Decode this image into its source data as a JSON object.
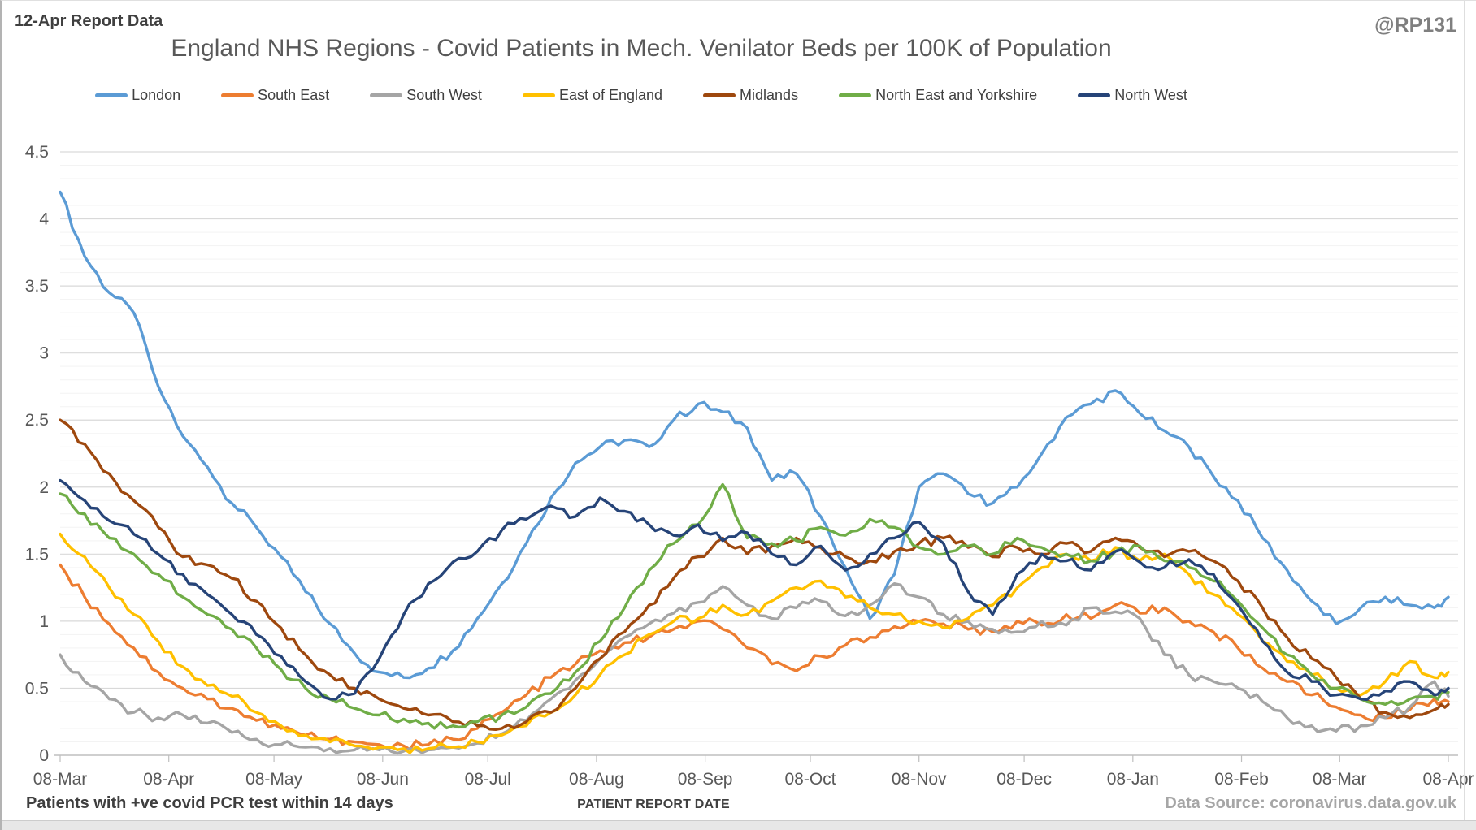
{
  "page": {
    "report_label": "12-Apr Report Data",
    "watermark": "@RP131",
    "footer_left": "Patients with +ve covid PCR test within 14 days",
    "footer_right": "Data Source: coronavirus.data.gov.uk"
  },
  "chart_data": {
    "type": "line",
    "title": "England NHS Regions - Covid Patients in Mech. Venilator Beds per 100K of Population",
    "xlabel": "PATIENT REPORT DATE",
    "ylabel": "",
    "ylim": [
      0,
      4.5
    ],
    "y_ticks": [
      0,
      0.5,
      1,
      1.5,
      2,
      2.5,
      3,
      3.5,
      4,
      4.5
    ],
    "grid": {
      "horizontal_major_step": 0.5,
      "horizontal_minor_step": 0.1,
      "vertical": false
    },
    "legend_position": "top",
    "x_tick_labels": [
      "08-Mar",
      "08-Apr",
      "08-May",
      "08-Jun",
      "08-Jul",
      "08-Aug",
      "08-Sep",
      "08-Oct",
      "08-Nov",
      "08-Dec",
      "08-Jan",
      "08-Feb",
      "08-Mar",
      "08-Apr"
    ],
    "x_tick_day_offsets": [
      0,
      31,
      61,
      92,
      122,
      153,
      184,
      214,
      245,
      275,
      306,
      337,
      365,
      396
    ],
    "x_sample_dates": [
      "2020-03-08",
      "2020-03-15",
      "2020-03-22",
      "2020-03-29",
      "2020-04-05",
      "2020-04-12",
      "2020-04-19",
      "2020-04-26",
      "2020-05-03",
      "2020-05-10",
      "2020-05-17",
      "2020-05-24",
      "2020-05-31",
      "2020-06-07",
      "2020-06-14",
      "2020-06-21",
      "2020-06-28",
      "2020-07-05",
      "2020-07-12",
      "2020-07-19",
      "2020-07-26",
      "2020-08-02",
      "2020-08-09",
      "2020-08-16",
      "2020-08-23",
      "2020-08-30",
      "2020-09-06",
      "2020-09-13",
      "2020-09-20",
      "2020-09-27",
      "2020-10-04",
      "2020-10-11",
      "2020-10-18",
      "2020-10-25",
      "2020-11-01",
      "2020-11-08",
      "2020-11-15",
      "2020-11-22",
      "2020-11-29",
      "2020-12-06",
      "2020-12-13",
      "2020-12-20",
      "2020-12-27",
      "2021-01-03",
      "2021-01-10",
      "2021-01-17",
      "2021-01-24",
      "2021-01-31",
      "2021-02-07",
      "2021-02-14",
      "2021-02-21",
      "2021-02-28",
      "2021-03-07",
      "2021-03-14",
      "2021-03-21",
      "2021-03-28",
      "2021-04-04",
      "2021-04-08"
    ],
    "x_sample_day_offsets": [
      0,
      7,
      14,
      21,
      28,
      35,
      42,
      49,
      56,
      63,
      70,
      77,
      84,
      91,
      98,
      105,
      112,
      119,
      126,
      133,
      140,
      147,
      154,
      161,
      168,
      175,
      182,
      189,
      196,
      203,
      210,
      217,
      224,
      231,
      238,
      245,
      252,
      259,
      266,
      273,
      280,
      287,
      294,
      301,
      308,
      315,
      322,
      329,
      336,
      343,
      350,
      357,
      364,
      371,
      378,
      385,
      392,
      396
    ],
    "series": [
      {
        "name": "London",
        "color": "#5B9BD5",
        "values": [
          4.2,
          3.72,
          3.45,
          3.3,
          2.75,
          2.38,
          2.15,
          1.88,
          1.7,
          1.48,
          1.22,
          0.98,
          0.76,
          0.62,
          0.58,
          0.65,
          0.78,
          1.02,
          1.28,
          1.58,
          1.92,
          2.18,
          2.3,
          2.35,
          2.3,
          2.5,
          2.62,
          2.56,
          2.44,
          2.05,
          2.1,
          1.78,
          1.4,
          1.02,
          1.35,
          2.0,
          2.1,
          1.95,
          1.88,
          2.0,
          2.25,
          2.52,
          2.62,
          2.72,
          2.55,
          2.42,
          2.3,
          2.08,
          1.9,
          1.62,
          1.38,
          1.15,
          0.98,
          1.1,
          1.18,
          1.12,
          1.1,
          1.18
        ]
      },
      {
        "name": "South East",
        "color": "#ED7D31",
        "values": [
          1.42,
          1.18,
          0.98,
          0.8,
          0.62,
          0.5,
          0.42,
          0.35,
          0.26,
          0.2,
          0.15,
          0.12,
          0.1,
          0.08,
          0.07,
          0.08,
          0.12,
          0.2,
          0.32,
          0.45,
          0.58,
          0.68,
          0.78,
          0.84,
          0.88,
          0.94,
          1.0,
          0.94,
          0.8,
          0.68,
          0.63,
          0.74,
          0.82,
          0.88,
          0.96,
          1.0,
          0.98,
          0.94,
          0.92,
          1.0,
          0.97,
          1.05,
          1.02,
          1.12,
          1.06,
          1.1,
          1.0,
          0.92,
          0.8,
          0.65,
          0.55,
          0.45,
          0.36,
          0.3,
          0.28,
          0.34,
          0.42,
          0.4
        ]
      },
      {
        "name": "South West",
        "color": "#A5A5A5",
        "values": [
          0.75,
          0.55,
          0.42,
          0.32,
          0.28,
          0.3,
          0.24,
          0.17,
          0.12,
          0.08,
          0.06,
          0.05,
          0.04,
          0.04,
          0.03,
          0.04,
          0.06,
          0.09,
          0.16,
          0.26,
          0.42,
          0.56,
          0.72,
          0.88,
          0.98,
          1.06,
          1.14,
          1.26,
          1.12,
          1.02,
          1.1,
          1.15,
          1.04,
          1.12,
          1.28,
          1.18,
          1.05,
          1.0,
          0.94,
          0.92,
          1.0,
          0.97,
          1.1,
          1.07,
          1.02,
          0.75,
          0.6,
          0.55,
          0.5,
          0.4,
          0.28,
          0.22,
          0.18,
          0.22,
          0.28,
          0.36,
          0.55,
          0.44
        ]
      },
      {
        "name": "East of England",
        "color": "#FFC000",
        "values": [
          1.65,
          1.48,
          1.25,
          1.05,
          0.85,
          0.66,
          0.52,
          0.44,
          0.32,
          0.22,
          0.15,
          0.1,
          0.07,
          0.06,
          0.05,
          0.05,
          0.06,
          0.1,
          0.15,
          0.22,
          0.32,
          0.45,
          0.6,
          0.75,
          0.9,
          1.0,
          1.02,
          1.12,
          1.05,
          1.15,
          1.25,
          1.3,
          1.18,
          1.1,
          1.05,
          1.0,
          0.95,
          1.02,
          1.12,
          1.25,
          1.4,
          1.5,
          1.45,
          1.55,
          1.45,
          1.5,
          1.35,
          1.2,
          1.05,
          0.85,
          0.7,
          0.6,
          0.5,
          0.45,
          0.55,
          0.7,
          0.58,
          0.62
        ]
      },
      {
        "name": "Midlands",
        "color": "#9E480E",
        "values": [
          2.5,
          2.32,
          2.1,
          1.9,
          1.7,
          1.48,
          1.42,
          1.32,
          1.15,
          0.95,
          0.75,
          0.6,
          0.5,
          0.42,
          0.35,
          0.3,
          0.25,
          0.22,
          0.2,
          0.25,
          0.32,
          0.5,
          0.72,
          0.92,
          1.12,
          1.32,
          1.48,
          1.62,
          1.5,
          1.56,
          1.62,
          1.55,
          1.48,
          1.45,
          1.52,
          1.58,
          1.62,
          1.55,
          1.48,
          1.55,
          1.5,
          1.58,
          1.52,
          1.62,
          1.55,
          1.48,
          1.52,
          1.45,
          1.3,
          1.1,
          0.88,
          0.72,
          0.58,
          0.42,
          0.32,
          0.28,
          0.34,
          0.38
        ]
      },
      {
        "name": "North East and Yorkshire",
        "color": "#70AD47",
        "values": [
          1.95,
          1.8,
          1.62,
          1.5,
          1.35,
          1.18,
          1.05,
          0.94,
          0.8,
          0.64,
          0.5,
          0.42,
          0.35,
          0.3,
          0.27,
          0.24,
          0.22,
          0.25,
          0.3,
          0.36,
          0.46,
          0.62,
          0.85,
          1.1,
          1.38,
          1.58,
          1.72,
          2.02,
          1.62,
          1.58,
          1.6,
          1.7,
          1.64,
          1.76,
          1.7,
          1.55,
          1.5,
          1.56,
          1.5,
          1.62,
          1.55,
          1.5,
          1.45,
          1.52,
          1.56,
          1.45,
          1.4,
          1.3,
          1.15,
          0.95,
          0.75,
          0.6,
          0.5,
          0.42,
          0.38,
          0.42,
          0.44,
          0.47
        ]
      },
      {
        "name": "North West",
        "color": "#264478",
        "values": [
          2.05,
          1.9,
          1.75,
          1.65,
          1.5,
          1.35,
          1.2,
          1.05,
          0.9,
          0.74,
          0.55,
          0.42,
          0.46,
          0.72,
          1.05,
          1.28,
          1.44,
          1.52,
          1.68,
          1.76,
          1.86,
          1.78,
          1.92,
          1.82,
          1.72,
          1.64,
          1.72,
          1.6,
          1.66,
          1.5,
          1.42,
          1.56,
          1.38,
          1.5,
          1.62,
          1.74,
          1.58,
          1.22,
          1.05,
          1.35,
          1.5,
          1.45,
          1.38,
          1.52,
          1.44,
          1.4,
          1.46,
          1.35,
          1.12,
          0.85,
          0.62,
          0.55,
          0.45,
          0.42,
          0.48,
          0.55,
          0.45,
          0.5
        ]
      }
    ],
    "axis_text_color": "#595959",
    "major_grid_color": "#d9d9d9",
    "minor_grid_color": "#f3f3f3",
    "axis_line_color": "#bfbfbf"
  }
}
